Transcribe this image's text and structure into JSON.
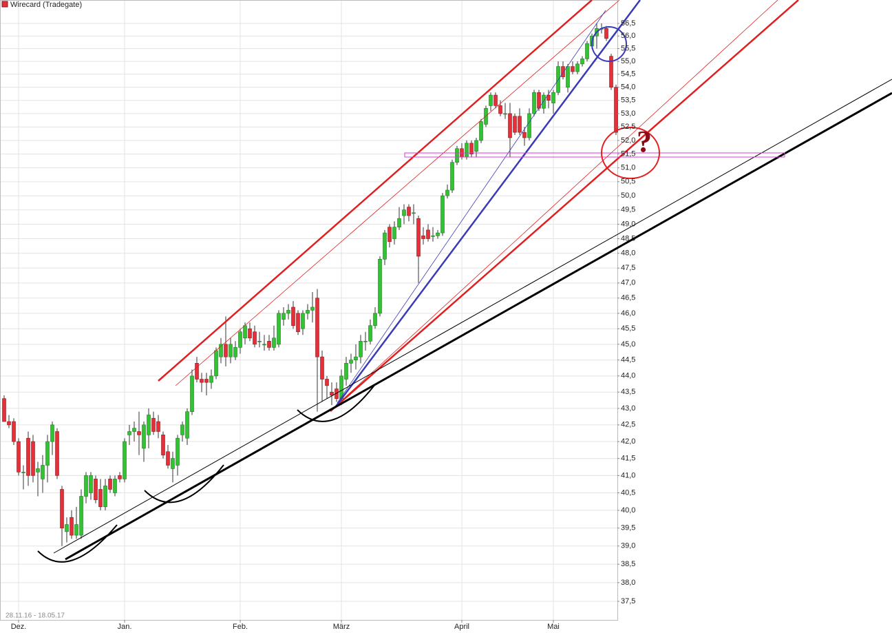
{
  "chart_data": {
    "type": "candlestick",
    "title": "Wirecard (Tradegate)",
    "date_range": "28.11.16 - 18.05.17",
    "annotation": "?",
    "log_scale": true,
    "grid": true,
    "up_color": "#33c233",
    "down_color": "#e3303a",
    "ylim": [
      37,
      57
    ],
    "yticks": [
      {
        "value": 37.5,
        "label": "37,5"
      },
      {
        "value": 38,
        "label": "38,0"
      },
      {
        "value": 38.5,
        "label": "38,5"
      },
      {
        "value": 39,
        "label": "39,0"
      },
      {
        "value": 39.5,
        "label": "39,5"
      },
      {
        "value": 40,
        "label": "40,0"
      },
      {
        "value": 40.5,
        "label": "40,5"
      },
      {
        "value": 41,
        "label": "41,0"
      },
      {
        "value": 41.5,
        "label": "41,5"
      },
      {
        "value": 42,
        "label": "42,0"
      },
      {
        "value": 42.5,
        "label": "42,5"
      },
      {
        "value": 43,
        "label": "43,0"
      },
      {
        "value": 43.5,
        "label": "43,5"
      },
      {
        "value": 44,
        "label": "44,0"
      },
      {
        "value": 44.5,
        "label": "44,5"
      },
      {
        "value": 45,
        "label": "45,0"
      },
      {
        "value": 45.5,
        "label": "45,5"
      },
      {
        "value": 46,
        "label": "46,0"
      },
      {
        "value": 46.5,
        "label": "46,5"
      },
      {
        "value": 47,
        "label": "47,0"
      },
      {
        "value": 47.5,
        "label": "47,5"
      },
      {
        "value": 48,
        "label": "48,0"
      },
      {
        "value": 48.5,
        "label": "48,5"
      },
      {
        "value": 49,
        "label": "49,0"
      },
      {
        "value": 49.5,
        "label": "49,5"
      },
      {
        "value": 50,
        "label": "50,0"
      },
      {
        "value": 50.5,
        "label": "50,5"
      },
      {
        "value": 51,
        "label": "51,0"
      },
      {
        "value": 51.5,
        "label": "51,5"
      },
      {
        "value": 52,
        "label": "52,0"
      },
      {
        "value": 52.5,
        "label": "52,5"
      },
      {
        "value": 53,
        "label": "53,0"
      },
      {
        "value": 53.5,
        "label": "53,5"
      },
      {
        "value": 54,
        "label": "54,0"
      },
      {
        "value": 54.5,
        "label": "54,5"
      },
      {
        "value": 55,
        "label": "55,0"
      },
      {
        "value": 55.5,
        "label": "55,5"
      },
      {
        "value": 56,
        "label": "56,0"
      },
      {
        "value": 56.5,
        "label": "56,5"
      }
    ],
    "xticks": [
      {
        "value": 3,
        "label": "Dez."
      },
      {
        "value": 25,
        "label": "Jan."
      },
      {
        "value": 49,
        "label": "Feb."
      },
      {
        "value": 70,
        "label": "März"
      },
      {
        "value": 95,
        "label": "April"
      },
      {
        "value": 114,
        "label": "Mai"
      }
    ],
    "open": [
      43.3,
      42.6,
      42.6,
      42.0,
      41.1,
      42.1,
      42.0,
      41.1,
      40.9,
      41.3,
      42.0,
      42.3,
      40.6,
      39.4,
      39.8,
      39.3,
      39.3,
      40.4,
      40.5,
      40.9,
      40.6,
      40.1,
      40.9,
      40.5,
      41.0,
      40.9,
      42.2,
      42.3,
      42.3,
      41.8,
      42.2,
      42.7,
      42.6,
      42.2,
      41.7,
      41.2,
      41.3,
      42.2,
      42.1,
      42.9,
      44.4,
      43.9,
      43.9,
      43.8,
      44.0,
      44.6,
      45.0,
      44.6,
      44.6,
      44.9,
      45.2,
      45.5,
      45.4,
      45.1,
      45.0,
      45.1,
      44.9,
      45.0,
      45.8,
      46.0,
      46.2,
      46.0,
      45.5,
      46.0,
      46.1,
      46.5,
      44.6,
      43.9,
      43.5,
      43.6,
      43.3,
      43.9,
      44.4,
      44.5,
      44.6,
      45.1,
      45.1,
      45.6,
      46.0,
      47.8,
      48.9,
      48.5,
      48.9,
      49.3,
      49.6,
      49.4,
      49.2,
      48.6,
      48.8,
      48.6,
      48.6,
      48.7,
      50.0,
      50.2,
      51.2,
      51.7,
      51.4,
      51.9,
      51.6,
      52.0,
      52.6,
      53.3,
      53.7,
      53.3,
      53.0,
      53.0,
      52.9,
      52.9,
      52.3,
      52.1,
      53.0,
      53.8,
      53.2,
      53.7,
      53.4,
      53.8,
      54.8,
      54.0,
      54.8,
      54.6,
      54.9,
      55.1,
      55.6,
      56.0,
      56.3,
      56.3,
      55.2,
      54.0
    ],
    "high": [
      43.4,
      42.8,
      42.7,
      42.1,
      41.3,
      42.3,
      42.2,
      41.4,
      41.6,
      42.2,
      42.6,
      42.4,
      40.7,
      39.8,
      40.0,
      40.1,
      40.6,
      41.1,
      41.1,
      41.0,
      40.9,
      40.9,
      41.0,
      41.0,
      41.1,
      42.1,
      42.5,
      42.6,
      42.9,
      42.6,
      43.0,
      42.9,
      42.8,
      42.3,
      41.9,
      41.7,
      42.2,
      42.6,
      43.0,
      44.2,
      44.6,
      44.1,
      44.1,
      44.2,
      44.9,
      45.2,
      45.9,
      45.2,
      45.1,
      45.5,
      45.7,
      45.7,
      45.6,
      45.4,
      45.3,
      45.3,
      45.6,
      46.1,
      46.2,
      46.3,
      46.4,
      46.1,
      46.1,
      46.3,
      46.7,
      46.8,
      44.8,
      44.0,
      43.8,
      43.8,
      44.2,
      44.6,
      44.7,
      45.0,
      45.3,
      45.4,
      45.8,
      46.2,
      47.9,
      48.8,
      49.0,
      49.1,
      49.6,
      49.7,
      49.7,
      49.7,
      49.3,
      48.9,
      49.0,
      48.9,
      48.8,
      50.1,
      50.4,
      51.3,
      51.8,
      51.9,
      52.0,
      52.0,
      52.1,
      52.8,
      53.3,
      53.8,
      53.8,
      53.5,
      53.4,
      53.4,
      53.0,
      53.2,
      52.5,
      53.2,
      53.9,
      53.9,
      53.8,
      53.9,
      53.9,
      55.0,
      55.0,
      54.9,
      55.0,
      55.0,
      55.2,
      55.8,
      56.1,
      56.5,
      56.5,
      56.4,
      55.3,
      54.1
    ],
    "low": [
      42.6,
      42.4,
      41.9,
      41.0,
      40.6,
      40.7,
      40.8,
      40.4,
      40.5,
      40.8,
      41.6,
      40.9,
      39.0,
      39.1,
      39.2,
      39.2,
      39.2,
      40.2,
      40.3,
      40.2,
      40.0,
      40.0,
      40.5,
      40.4,
      40.8,
      40.8,
      41.9,
      42.0,
      41.6,
      41.4,
      41.8,
      42.2,
      42.1,
      41.5,
      41.2,
      40.8,
      41.0,
      42.0,
      41.9,
      42.8,
      43.8,
      43.5,
      43.4,
      43.6,
      43.9,
      44.4,
      44.3,
      44.4,
      44.5,
      44.7,
      45.0,
      45.1,
      44.9,
      44.9,
      44.8,
      44.8,
      44.8,
      44.9,
      45.6,
      45.8,
      45.5,
      45.3,
      45.3,
      45.8,
      45.7,
      42.9,
      43.2,
      43.3,
      43.1,
      43.2,
      43.1,
      43.7,
      44.1,
      44.2,
      44.4,
      44.8,
      45.0,
      45.5,
      45.9,
      47.6,
      48.2,
      48.3,
      48.8,
      49.0,
      49.1,
      49.0,
      47.0,
      48.3,
      48.4,
      48.4,
      48.5,
      48.6,
      49.9,
      50.1,
      51.1,
      51.3,
      51.3,
      51.4,
      51.4,
      51.9,
      52.5,
      53.1,
      53.2,
      52.9,
      52.8,
      51.4,
      52.2,
      52.2,
      51.8,
      52.0,
      52.9,
      53.1,
      53.0,
      53.2,
      53.0,
      53.7,
      54.3,
      53.8,
      54.5,
      54.5,
      54.8,
      55.0,
      55.5,
      55.5,
      56.1,
      55.8,
      53.9,
      52.2
    ],
    "close": [
      42.6,
      42.5,
      42.0,
      41.1,
      41.1,
      41.0,
      41.0,
      41.2,
      41.3,
      42.0,
      42.5,
      41.0,
      39.5,
      39.6,
      39.3,
      39.6,
      40.4,
      41.0,
      41.0,
      40.3,
      40.1,
      40.7,
      40.6,
      40.9,
      40.9,
      42.0,
      42.3,
      42.4,
      42.2,
      42.5,
      42.8,
      42.3,
      42.3,
      41.6,
      41.3,
      41.5,
      42.1,
      42.5,
      42.9,
      44.0,
      43.9,
      43.8,
      43.8,
      44.0,
      44.8,
      45.0,
      44.6,
      45.0,
      44.9,
      45.4,
      45.6,
      45.2,
      45.0,
      45.1,
      45.0,
      44.9,
      45.2,
      46.0,
      46.0,
      46.1,
      45.6,
      45.4,
      46.0,
      46.1,
      46.2,
      44.6,
      43.9,
      43.7,
      43.4,
      43.3,
      44.0,
      44.4,
      44.5,
      44.6,
      45.1,
      45.1,
      45.6,
      46.0,
      47.8,
      48.7,
      48.4,
      48.9,
      49.2,
      49.5,
      49.3,
      49.4,
      47.9,
      48.5,
      48.5,
      48.6,
      48.7,
      50.0,
      50.2,
      51.2,
      51.7,
      51.4,
      51.9,
      51.5,
      52.0,
      52.7,
      53.2,
      53.7,
      53.3,
      53.0,
      53.0,
      52.1,
      52.3,
      52.3,
      52.1,
      53.0,
      53.8,
      53.2,
      53.7,
      53.5,
      53.8,
      54.8,
      54.4,
      54.8,
      54.6,
      54.9,
      55.1,
      55.7,
      56.0,
      56.3,
      56.3,
      55.9,
      54.0,
      52.3
    ]
  }
}
